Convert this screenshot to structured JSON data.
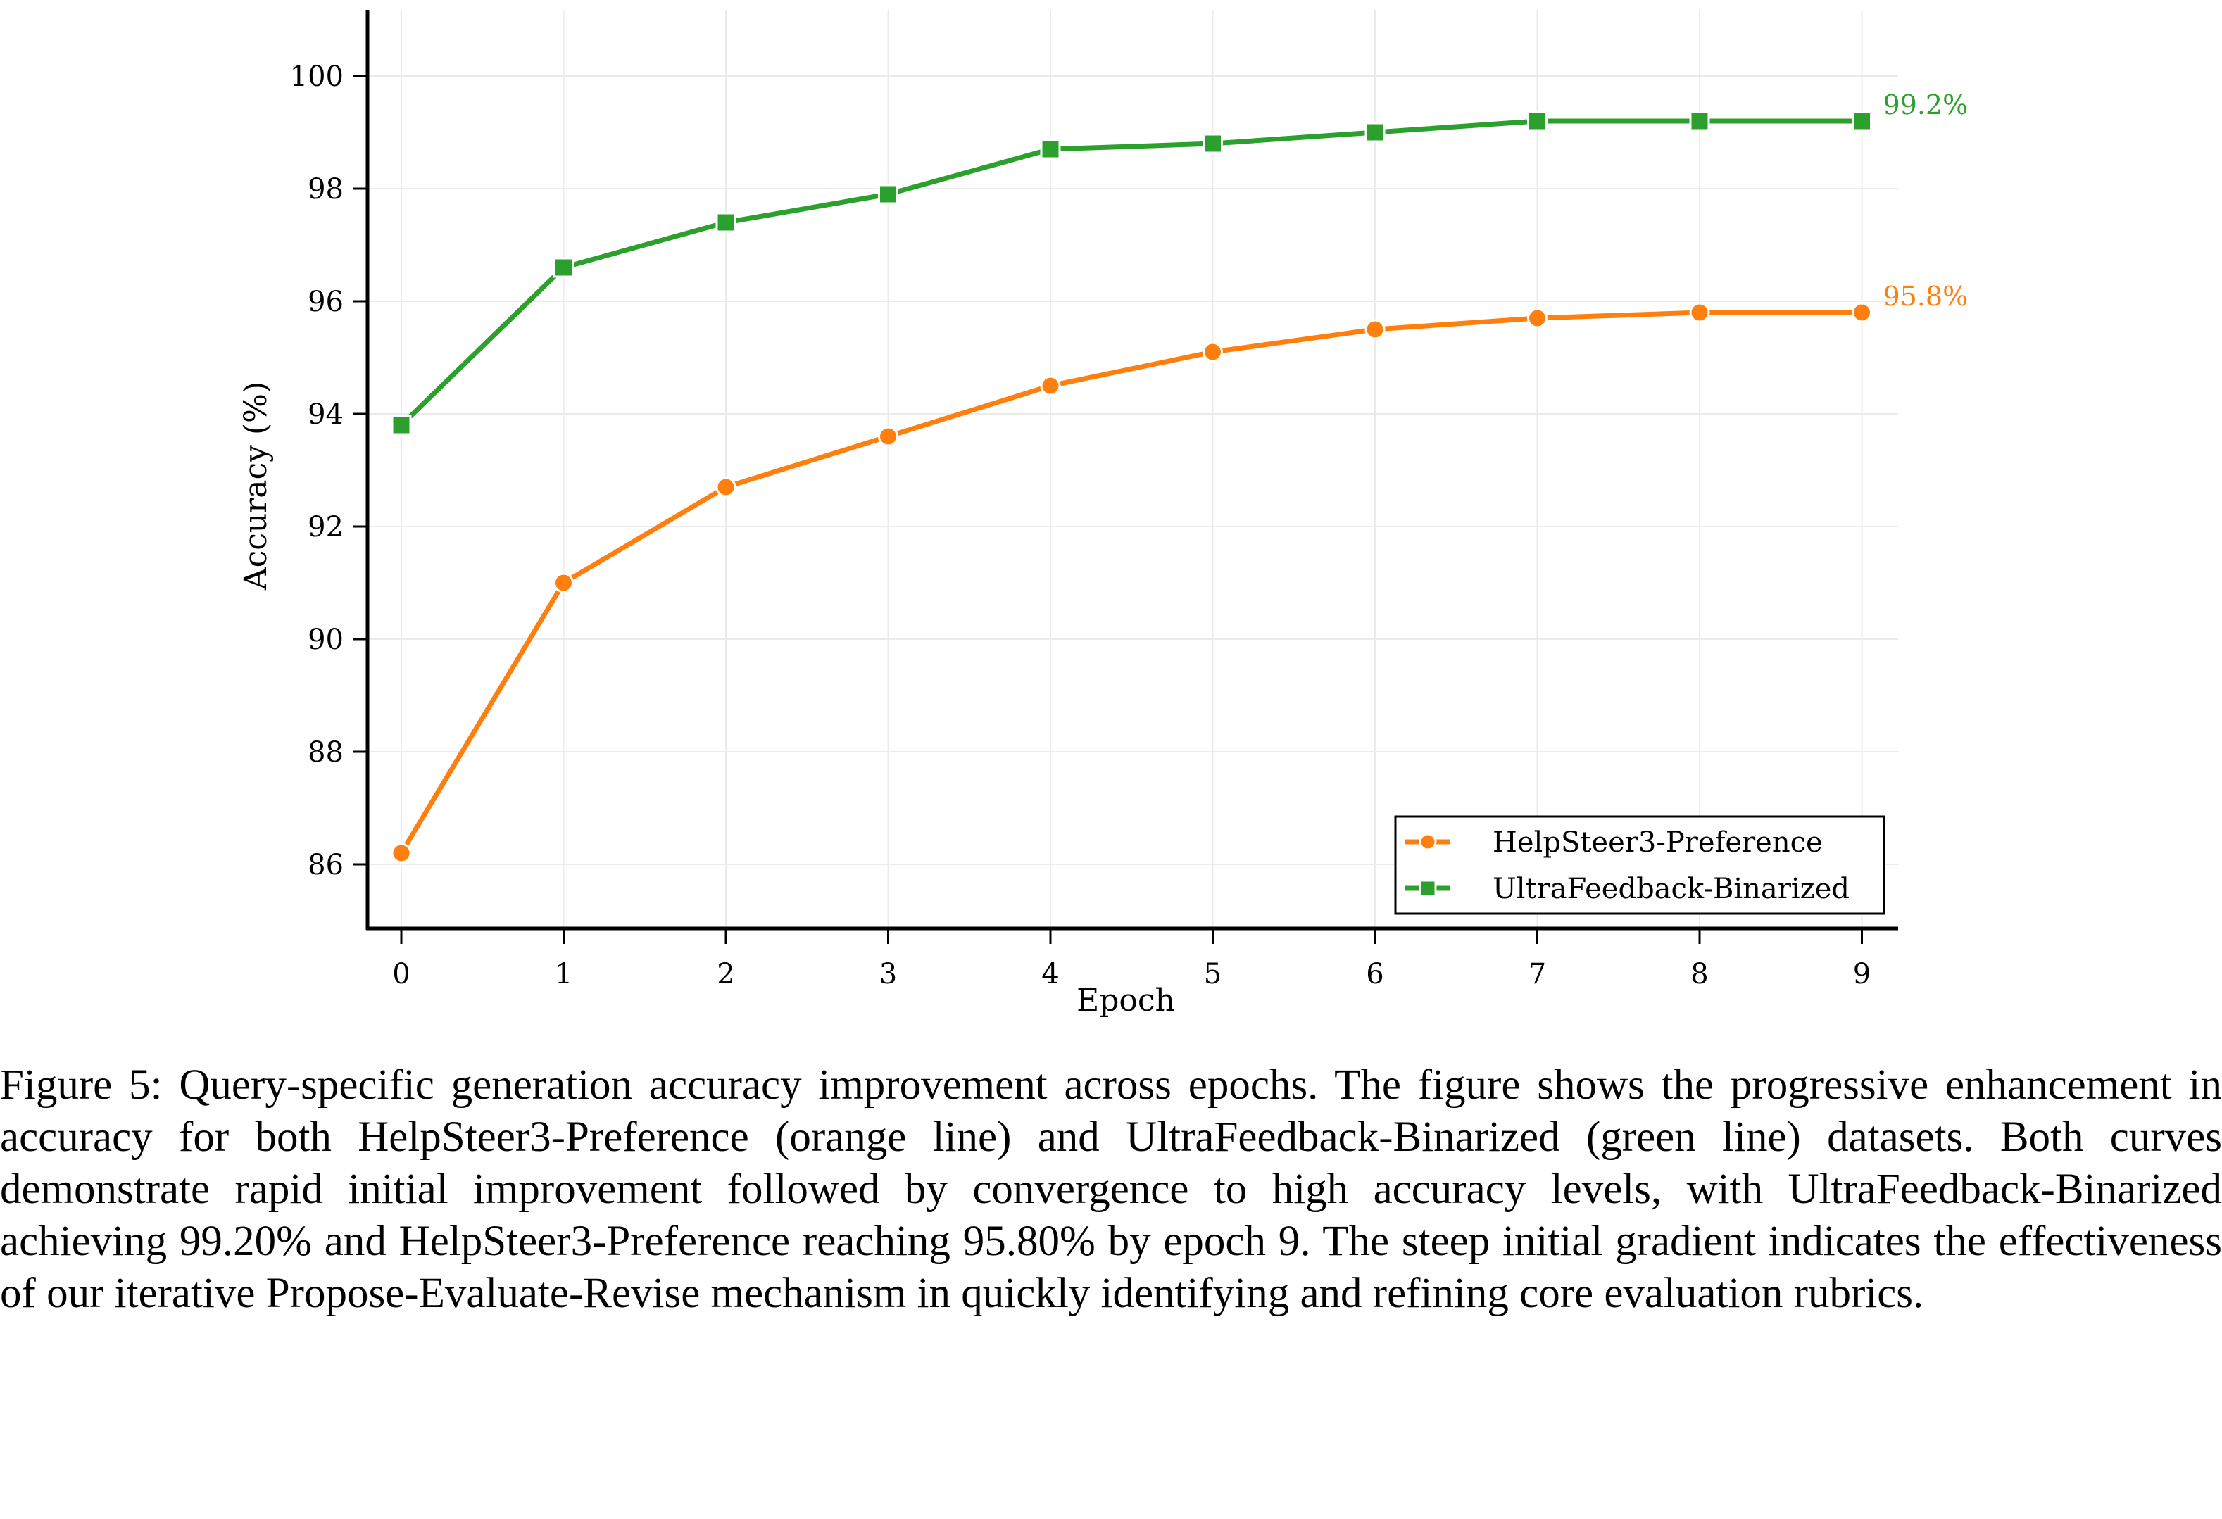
{
  "chart_data": {
    "type": "line",
    "title": "",
    "xlabel": "Epoch",
    "ylabel": "Accuracy (%)",
    "x": [
      0,
      1,
      2,
      3,
      4,
      5,
      6,
      7,
      8,
      9
    ],
    "x_ticks": [
      "0",
      "1",
      "2",
      "3",
      "4",
      "5",
      "6",
      "7",
      "8",
      "9"
    ],
    "y_ticks": [
      "86",
      "88",
      "90",
      "92",
      "94",
      "96",
      "98",
      "100"
    ],
    "xlim": [
      -0.2,
      9.2
    ],
    "ylim": [
      85.0,
      101.2
    ],
    "grid": true,
    "legend_position": "lower-right",
    "series": [
      {
        "name": "HelpSteer3-Preference",
        "color": "#ff7f0e",
        "marker": "circle",
        "values": [
          86.2,
          91.0,
          92.7,
          93.6,
          94.5,
          95.1,
          95.5,
          95.7,
          95.8,
          95.8
        ],
        "end_label": "95.8%"
      },
      {
        "name": "UltraFeedback-Binarized",
        "color": "#2ca02c",
        "marker": "square",
        "values": [
          93.8,
          96.6,
          97.4,
          97.9,
          98.7,
          98.8,
          99.0,
          99.2,
          99.2,
          99.2
        ],
        "end_label": "99.2%"
      }
    ]
  },
  "caption": {
    "label": "Figure 5:",
    "text": "Query-specific generation accuracy improvement across epochs. The figure shows the pro­gressive enhancement in accuracy for both HelpSteer3-Preference (orange line) and UltraFeedback-Binarized (green line) datasets. Both curves demonstrate rapid initial improvement followed by con­vergence to high accuracy levels, with UltraFeedback-Binarized achieving 99.20% and HelpSteer3-Preference reaching 95.80% by epoch 9. The steep initial gradient indicates the effectiveness of our iterative Propose-Evaluate-Revise mechanism in quickly identifying and refining core evaluation rubrics."
  }
}
